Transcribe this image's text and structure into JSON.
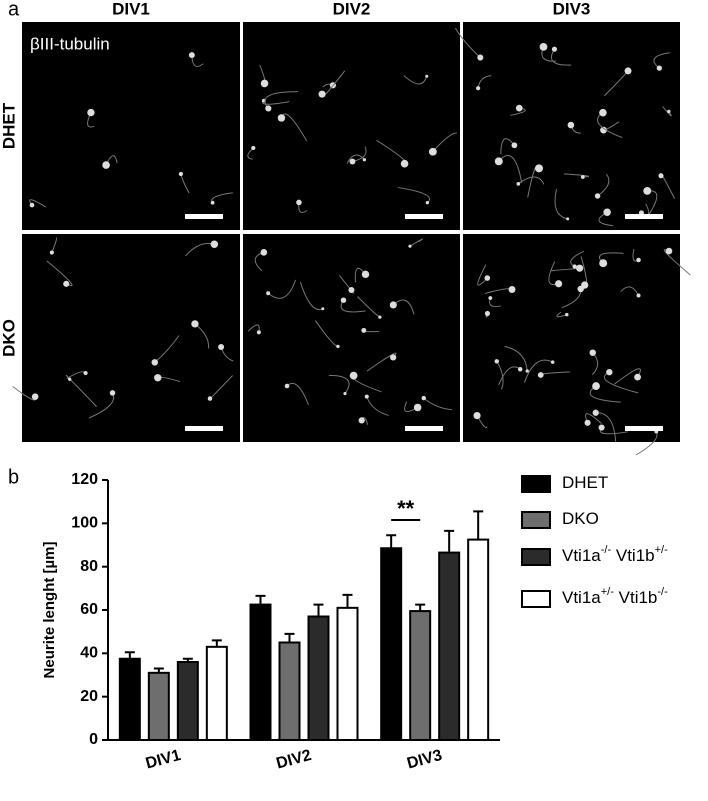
{
  "panel_labels": [
    "a",
    "b"
  ],
  "microscopy": {
    "stain_label": "βIII-tubulin",
    "columns": [
      "DIV1",
      "DIV2",
      "DIV3"
    ],
    "rows": [
      "DHET",
      "DKO"
    ]
  },
  "chart_data": {
    "type": "bar",
    "y_label": "Neurite lenght [µm]",
    "categories": [
      "DIV1",
      "DIV2",
      "DIV3"
    ],
    "series": [
      {
        "name": "DHET",
        "color": "#000000",
        "values": [
          37.5,
          62.5,
          88.5
        ],
        "errors": [
          3,
          4,
          6
        ]
      },
      {
        "name": "DKO",
        "color": "#6e6e6e",
        "values": [
          31,
          45,
          59.5
        ],
        "errors": [
          2,
          4,
          3
        ]
      },
      {
        "name": "Vti1a-/- Vti1b+/-",
        "color": "#2b2b2b",
        "values": [
          36,
          57,
          86.5
        ],
        "errors": [
          1.5,
          5.5,
          10
        ]
      },
      {
        "name": "Vti1a+/- Vti1b-/-",
        "color": "#ffffff",
        "values": [
          43,
          61,
          92.5
        ],
        "errors": [
          3,
          6,
          13
        ]
      }
    ],
    "ylim": [
      0,
      120
    ],
    "yticks": [
      0,
      20,
      40,
      60,
      80,
      100,
      120
    ],
    "annotation": "**"
  }
}
